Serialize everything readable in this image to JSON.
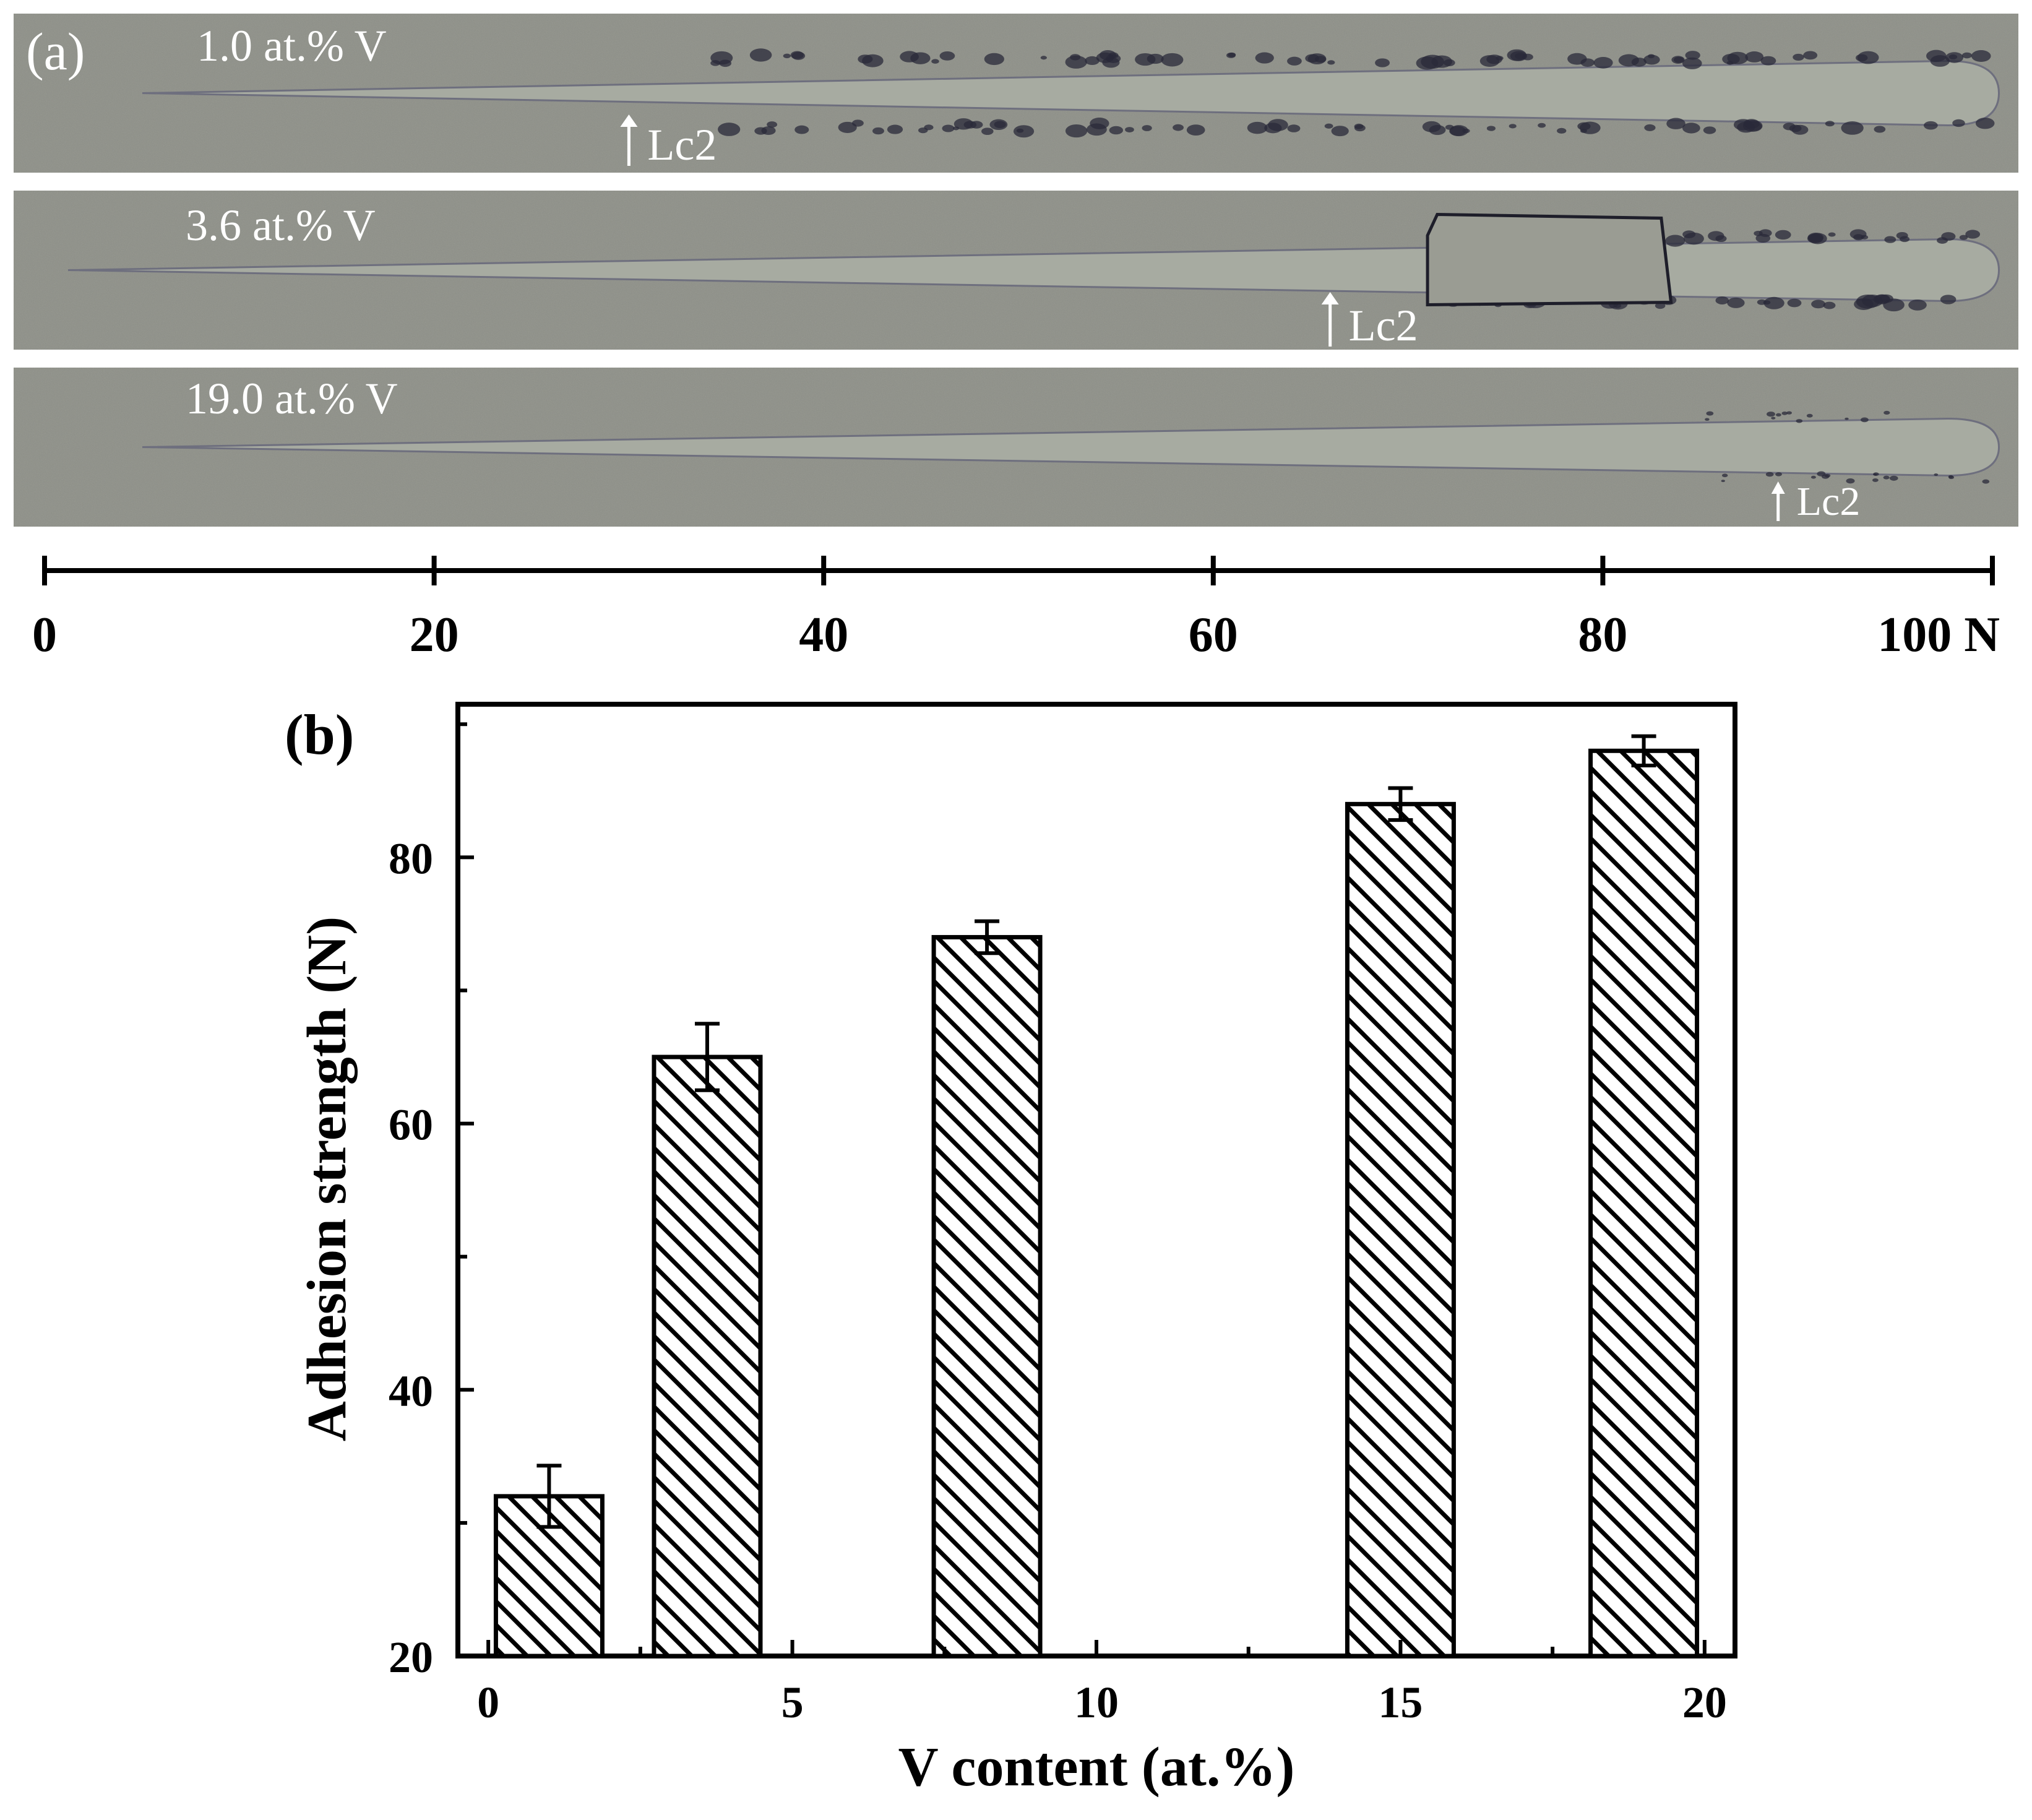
{
  "panel_a": {
    "label": "(a)",
    "tracks": [
      {
        "label": "1.0 at.% V",
        "marker": "Lc2",
        "lc2_load": 30,
        "track_end_load": 99
      },
      {
        "label": "3.6 at.% V",
        "marker": "Lc2",
        "lc2_load": 66,
        "track_end_load": 99
      },
      {
        "label": "19.0 at.% V",
        "marker": "Lc2",
        "lc2_load": 89,
        "track_end_load": 99
      }
    ],
    "scale": {
      "ticks": [
        0,
        20,
        40,
        60,
        80,
        100
      ],
      "tick_labels": [
        "0",
        "20",
        "40",
        "60",
        "80",
        "100 N"
      ],
      "range": [
        0,
        100
      ]
    },
    "colors": {
      "surface": "#8d8f87",
      "track": "#a7aba1",
      "debris": "#2a2a3a",
      "arrow": "#ffffff"
    }
  },
  "panel_b": {
    "label": "(b)"
  },
  "chart_data": {
    "type": "bar",
    "title": "",
    "xlabel": "V content (at.%)",
    "ylabel": "Adhesion strength (N)",
    "x": [
      1.0,
      3.6,
      8.2,
      15.0,
      19.0
    ],
    "values": [
      32,
      65,
      74,
      84,
      88
    ],
    "errors": [
      2.3,
      2.5,
      1.2,
      1.2,
      1.1
    ],
    "xlim": [
      -0.5,
      20.5
    ],
    "ylim": [
      20,
      91.5
    ],
    "xticks": [
      0,
      5,
      10,
      15,
      20
    ],
    "yticks": [
      20,
      40,
      60,
      80
    ],
    "bar_fill": "diagonal-hatch",
    "grid": false,
    "legend": "none"
  }
}
